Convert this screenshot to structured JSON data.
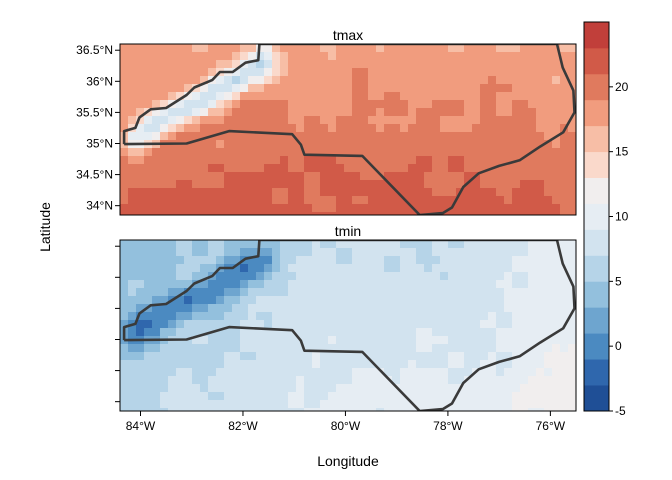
{
  "chart_data": {
    "type": "heatmap",
    "xlabel": "Longitude",
    "ylabel": "Latitude",
    "xlim": [
      -84.4,
      -75.5
    ],
    "ylim": [
      33.85,
      36.6
    ],
    "x_ticks": [
      {
        "value": -84,
        "label": "84°W"
      },
      {
        "value": -82,
        "label": "82°W"
      },
      {
        "value": -80,
        "label": "80°W"
      },
      {
        "value": -78,
        "label": "78°W"
      },
      {
        "value": -76,
        "label": "76°W"
      }
    ],
    "y_ticks": [
      {
        "value": 36.5,
        "label": "36.5°N"
      },
      {
        "value": 36.0,
        "label": "36°N"
      },
      {
        "value": 35.5,
        "label": "35.5°N"
      },
      {
        "value": 35.0,
        "label": "35°N"
      },
      {
        "value": 34.5,
        "label": "34.5°N"
      },
      {
        "value": 34.0,
        "label": "34°N"
      }
    ],
    "panels": [
      {
        "name": "tmax",
        "title": "tmax",
        "value_range": [
          8,
          24
        ]
      },
      {
        "name": "tmin",
        "title": "tmin",
        "value_range": [
          -4,
          13
        ]
      }
    ],
    "colorbar": {
      "min": -5,
      "max": 25,
      "step": 2,
      "ticks": [
        -5,
        0,
        5,
        10,
        15,
        20
      ],
      "tick_labels": [
        "-5",
        "0",
        "5",
        "10",
        "15",
        "20"
      ],
      "colors": [
        "#1f4f96",
        "#2f67ad",
        "#4b8ac1",
        "#6ea5cf",
        "#93c0dd",
        "#b6d4e8",
        "#d2e3ef",
        "#e6edf3",
        "#f1eeee",
        "#fad9cb",
        "#f7bea6",
        "#f19c7e",
        "#e07a5e",
        "#d15a48",
        "#c13f3a",
        "#b2232e",
        "#9b0a25"
      ]
    },
    "state_border": [
      [
        -84.32,
        34.99
      ],
      [
        -84.32,
        35.2
      ],
      [
        -84.1,
        35.25
      ],
      [
        -84.02,
        35.42
      ],
      [
        -83.8,
        35.55
      ],
      [
        -83.5,
        35.57
      ],
      [
        -83.1,
        35.78
      ],
      [
        -82.95,
        35.9
      ],
      [
        -82.6,
        36.02
      ],
      [
        -82.45,
        36.15
      ],
      [
        -82.2,
        36.15
      ],
      [
        -81.95,
        36.3
      ],
      [
        -81.7,
        36.34
      ],
      [
        -81.68,
        36.6
      ],
      [
        -78.0,
        36.6
      ],
      [
        -75.87,
        36.6
      ],
      [
        -75.76,
        36.22
      ],
      [
        -75.55,
        35.85
      ],
      [
        -75.53,
        35.5
      ],
      [
        -75.75,
        35.18
      ],
      [
        -76.2,
        34.95
      ],
      [
        -76.6,
        34.73
      ],
      [
        -77.0,
        34.64
      ],
      [
        -77.4,
        34.52
      ],
      [
        -77.7,
        34.3
      ],
      [
        -77.92,
        33.97
      ],
      [
        -78.1,
        33.88
      ],
      [
        -78.55,
        33.85
      ],
      [
        -79.67,
        34.8
      ],
      [
        -80.8,
        34.82
      ],
      [
        -80.87,
        34.98
      ],
      [
        -81.04,
        35.15
      ],
      [
        -82.27,
        35.2
      ],
      [
        -83.1,
        35.0
      ],
      [
        -84.32,
        34.99
      ]
    ]
  }
}
